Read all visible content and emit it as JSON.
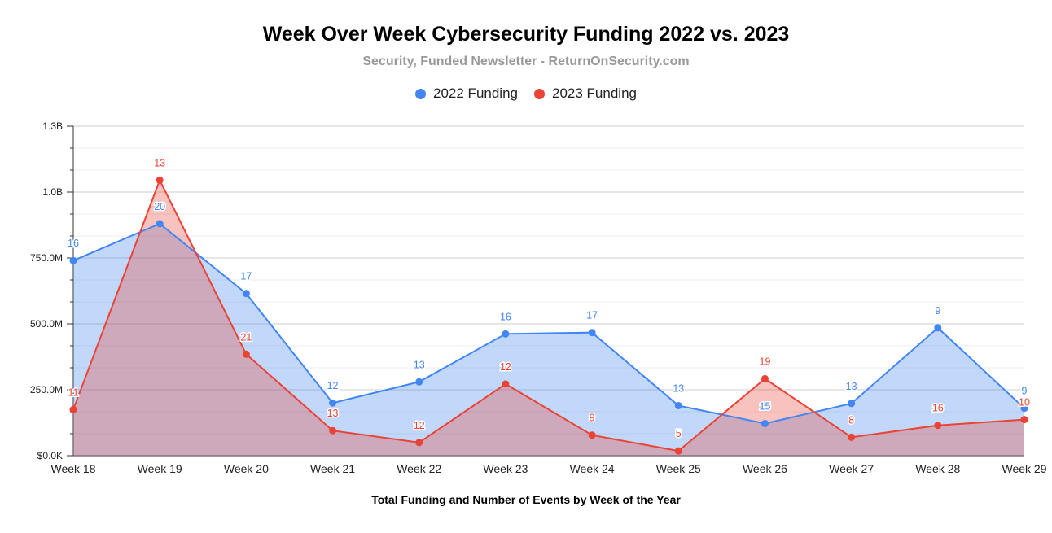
{
  "title": "Week Over Week Cybersecurity Funding 2022 vs. 2023",
  "subtitle": "Security, Funded Newsletter - ReturnOnSecurity.com",
  "chart_data": {
    "type": "area",
    "categories": [
      "Week 18",
      "Week 19",
      "Week 20",
      "Week 21",
      "Week 22",
      "Week 23",
      "Week 24",
      "Week 25",
      "Week 26",
      "Week 27",
      "Week 28",
      "Week 29"
    ],
    "series": [
      {
        "name": "2022 Funding",
        "color": "#4285f4",
        "values": [
          740000000,
          880000000,
          615000000,
          200000000,
          280000000,
          462000000,
          467000000,
          190000000,
          122000000,
          198000000,
          485000000,
          180000000
        ],
        "labels": [
          "16",
          "20",
          "17",
          "12",
          "13",
          "16",
          "17",
          "13",
          "15",
          "13",
          "9",
          "9"
        ]
      },
      {
        "name": "2023 Funding",
        "color": "#ea4335",
        "values": [
          175000000,
          1045000000,
          385000000,
          95000000,
          50000000,
          272000000,
          78000000,
          18000000,
          292000000,
          70000000,
          115000000,
          137000000
        ],
        "labels": [
          "11",
          "13",
          "21",
          "13",
          "12",
          "12",
          "9",
          "5",
          "19",
          "8",
          "16",
          "10"
        ]
      }
    ],
    "y_ticks": [
      {
        "value": 0,
        "label": "$0.0K"
      },
      {
        "value": 250000000,
        "label": "250.0M"
      },
      {
        "value": 500000000,
        "label": "500.0M"
      },
      {
        "value": 750000000,
        "label": "750.0M"
      },
      {
        "value": 1000000000,
        "label": "1.0B"
      },
      {
        "value": 1250000000,
        "label": "1.3B"
      }
    ],
    "ylim": [
      0,
      1250000000
    ],
    "xlabel": "Total Funding and Number of Events by Week of the Year",
    "ylabel": "",
    "legend": "top-center",
    "grid": true
  }
}
